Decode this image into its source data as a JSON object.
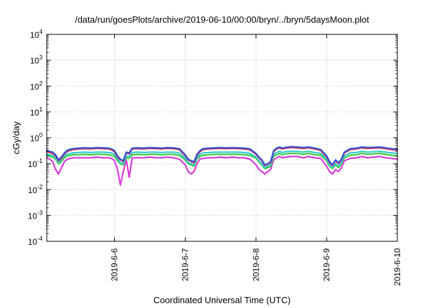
{
  "chart_data": {
    "type": "line",
    "title": "/data/run/goesPlots/archive/2019-06-10/00:00/bryn/../bryn/5daysMoon.plot",
    "xlabel": "Coordinated Universal Time (UTC)",
    "ylabel": "cGy/day",
    "y_scale": "log",
    "ylim": [
      0.0001,
      10000
    ],
    "y_ticks": [
      {
        "value": 0.0001,
        "base": "10",
        "exp": "-4"
      },
      {
        "value": 0.001,
        "base": "10",
        "exp": "-3"
      },
      {
        "value": 0.01,
        "base": "10",
        "exp": "-2"
      },
      {
        "value": 0.1,
        "base": "10",
        "exp": "-1"
      },
      {
        "value": 1,
        "base": "10",
        "exp": "0"
      },
      {
        "value": 10,
        "base": "10",
        "exp": "1"
      },
      {
        "value": 100,
        "base": "10",
        "exp": "2"
      },
      {
        "value": 1000,
        "base": "10",
        "exp": "3"
      },
      {
        "value": 10000,
        "base": "10",
        "exp": "4"
      }
    ],
    "xlim": [
      "2019-06-05 01:00",
      "2019-06-10 00:00"
    ],
    "x_ticks": [
      {
        "value": "2019-06-06",
        "label": "2019-6-6"
      },
      {
        "value": "2019-06-07",
        "label": "2019-6-7"
      },
      {
        "value": "2019-06-08",
        "label": "2019-6-8"
      },
      {
        "value": "2019-06-09",
        "label": "2019-6-9"
      },
      {
        "value": "2019-06-10",
        "label": "2019-6-10"
      }
    ],
    "grid": true,
    "legend": "none",
    "x": [
      "2019-06-05 01:00",
      "2019-06-05 02:00",
      "2019-06-05 03:00",
      "2019-06-05 04:00",
      "2019-06-05 05:00",
      "2019-06-05 06:00",
      "2019-06-05 07:00",
      "2019-06-05 08:00",
      "2019-06-05 09:00",
      "2019-06-05 10:00",
      "2019-06-05 11:00",
      "2019-06-05 12:00",
      "2019-06-05 14:00",
      "2019-06-05 16:00",
      "2019-06-05 18:00",
      "2019-06-05 20:00",
      "2019-06-05 22:00",
      "2019-06-05 23:00",
      "2019-06-06 00:00",
      "2019-06-06 01:00",
      "2019-06-06 02:00",
      "2019-06-06 03:00",
      "2019-06-06 04:00",
      "2019-06-06 05:00",
      "2019-06-06 06:00",
      "2019-06-06 08:00",
      "2019-06-06 10:00",
      "2019-06-06 12:00",
      "2019-06-06 14:00",
      "2019-06-06 16:00",
      "2019-06-06 18:00",
      "2019-06-06 20:00",
      "2019-06-06 22:00",
      "2019-06-07 00:00",
      "2019-06-07 01:00",
      "2019-06-07 02:00",
      "2019-06-07 03:00",
      "2019-06-07 04:00",
      "2019-06-07 05:00",
      "2019-06-07 06:00",
      "2019-06-07 08:00",
      "2019-06-07 10:00",
      "2019-06-07 12:00",
      "2019-06-07 14:00",
      "2019-06-07 16:00",
      "2019-06-07 18:00",
      "2019-06-07 20:00",
      "2019-06-07 22:00",
      "2019-06-08 00:00",
      "2019-06-08 01:00",
      "2019-06-08 02:00",
      "2019-06-08 03:00",
      "2019-06-08 04:00",
      "2019-06-08 05:00",
      "2019-06-08 06:00",
      "2019-06-08 07:00",
      "2019-06-08 08:00",
      "2019-06-08 09:00",
      "2019-06-08 10:00",
      "2019-06-08 12:00",
      "2019-06-08 14:00",
      "2019-06-08 16:00",
      "2019-06-08 18:00",
      "2019-06-08 20:00",
      "2019-06-08 22:00",
      "2019-06-09 00:00",
      "2019-06-09 01:00",
      "2019-06-09 02:00",
      "2019-06-09 03:00",
      "2019-06-09 04:00",
      "2019-06-09 05:00",
      "2019-06-09 06:00",
      "2019-06-09 08:00",
      "2019-06-09 10:00",
      "2019-06-09 12:00",
      "2019-06-09 14:00",
      "2019-06-09 16:00",
      "2019-06-09 18:00",
      "2019-06-09 20:00",
      "2019-06-09 22:00",
      "2019-06-10 00:00"
    ],
    "series": [
      {
        "color": "#2e4fd8",
        "values": [
          0.33,
          0.3,
          0.28,
          0.22,
          0.14,
          0.18,
          0.26,
          0.33,
          0.36,
          0.38,
          0.39,
          0.4,
          0.41,
          0.4,
          0.42,
          0.41,
          0.4,
          0.37,
          0.32,
          0.2,
          0.15,
          0.13,
          0.28,
          0.26,
          0.4,
          0.41,
          0.4,
          0.42,
          0.41,
          0.4,
          0.42,
          0.41,
          0.38,
          0.22,
          0.15,
          0.13,
          0.12,
          0.23,
          0.32,
          0.38,
          0.4,
          0.41,
          0.42,
          0.41,
          0.42,
          0.41,
          0.4,
          0.37,
          0.25,
          0.18,
          0.14,
          0.09,
          0.1,
          0.12,
          0.32,
          0.4,
          0.44,
          0.4,
          0.43,
          0.45,
          0.44,
          0.42,
          0.44,
          0.4,
          0.35,
          0.2,
          0.12,
          0.09,
          0.14,
          0.11,
          0.15,
          0.28,
          0.38,
          0.4,
          0.44,
          0.42,
          0.43,
          0.44,
          0.41,
          0.38,
          0.36
        ]
      },
      {
        "color": "#e8384a",
        "values": [
          0.29,
          0.27,
          0.25,
          0.2,
          0.13,
          0.16,
          0.24,
          0.3,
          0.33,
          0.35,
          0.36,
          0.37,
          0.38,
          0.37,
          0.39,
          0.38,
          0.37,
          0.34,
          0.29,
          0.18,
          0.14,
          0.12,
          0.26,
          0.24,
          0.37,
          0.38,
          0.37,
          0.39,
          0.38,
          0.37,
          0.39,
          0.38,
          0.35,
          0.2,
          0.14,
          0.12,
          0.11,
          0.21,
          0.29,
          0.35,
          0.37,
          0.38,
          0.39,
          0.38,
          0.39,
          0.38,
          0.37,
          0.34,
          0.23,
          0.17,
          0.13,
          0.085,
          0.095,
          0.11,
          0.29,
          0.37,
          0.41,
          0.37,
          0.4,
          0.42,
          0.41,
          0.39,
          0.41,
          0.37,
          0.32,
          0.18,
          0.11,
          0.085,
          0.13,
          0.1,
          0.14,
          0.26,
          0.35,
          0.37,
          0.41,
          0.39,
          0.4,
          0.41,
          0.38,
          0.35,
          0.33
        ]
      },
      {
        "color": "#35c9cf",
        "values": [
          0.24,
          0.22,
          0.21,
          0.17,
          0.11,
          0.14,
          0.2,
          0.24,
          0.25,
          0.26,
          0.27,
          0.27,
          0.28,
          0.27,
          0.28,
          0.28,
          0.27,
          0.26,
          0.23,
          0.15,
          0.11,
          0.1,
          0.2,
          0.19,
          0.27,
          0.28,
          0.27,
          0.28,
          0.28,
          0.27,
          0.28,
          0.28,
          0.26,
          0.16,
          0.11,
          0.1,
          0.09,
          0.17,
          0.23,
          0.26,
          0.27,
          0.28,
          0.28,
          0.28,
          0.28,
          0.28,
          0.27,
          0.25,
          0.18,
          0.13,
          0.1,
          0.07,
          0.08,
          0.09,
          0.23,
          0.27,
          0.3,
          0.27,
          0.29,
          0.3,
          0.3,
          0.28,
          0.3,
          0.27,
          0.25,
          0.15,
          0.09,
          0.07,
          0.1,
          0.08,
          0.11,
          0.2,
          0.26,
          0.27,
          0.3,
          0.28,
          0.29,
          0.3,
          0.28,
          0.26,
          0.25
        ]
      },
      {
        "color": "#3cc93f",
        "values": [
          0.21,
          0.19,
          0.18,
          0.15,
          0.1,
          0.12,
          0.17,
          0.2,
          0.21,
          0.22,
          0.22,
          0.22,
          0.23,
          0.22,
          0.23,
          0.23,
          0.22,
          0.21,
          0.19,
          0.13,
          0.1,
          0.09,
          0.17,
          0.16,
          0.22,
          0.23,
          0.22,
          0.23,
          0.23,
          0.22,
          0.23,
          0.23,
          0.21,
          0.14,
          0.1,
          0.09,
          0.08,
          0.15,
          0.19,
          0.21,
          0.22,
          0.23,
          0.23,
          0.23,
          0.23,
          0.23,
          0.22,
          0.21,
          0.16,
          0.12,
          0.09,
          0.065,
          0.07,
          0.08,
          0.19,
          0.22,
          0.25,
          0.22,
          0.24,
          0.25,
          0.25,
          0.23,
          0.25,
          0.22,
          0.21,
          0.13,
          0.08,
          0.065,
          0.09,
          0.07,
          0.1,
          0.17,
          0.21,
          0.22,
          0.25,
          0.23,
          0.24,
          0.25,
          0.23,
          0.21,
          0.2
        ]
      },
      {
        "color": "#d63bd6",
        "values": [
          0.17,
          0.15,
          0.12,
          0.06,
          0.04,
          0.07,
          0.12,
          0.15,
          0.16,
          0.17,
          0.17,
          0.17,
          0.17,
          0.17,
          0.18,
          0.17,
          0.17,
          0.16,
          0.13,
          0.06,
          0.015,
          0.05,
          0.14,
          0.03,
          0.17,
          0.17,
          0.17,
          0.18,
          0.17,
          0.17,
          0.18,
          0.17,
          0.15,
          0.09,
          0.05,
          0.04,
          0.05,
          0.1,
          0.15,
          0.16,
          0.17,
          0.17,
          0.18,
          0.17,
          0.18,
          0.17,
          0.17,
          0.15,
          0.09,
          0.06,
          0.05,
          0.04,
          0.05,
          0.06,
          0.14,
          0.17,
          0.19,
          0.17,
          0.18,
          0.19,
          0.19,
          0.17,
          0.19,
          0.17,
          0.16,
          0.08,
          0.05,
          0.04,
          0.06,
          0.05,
          0.07,
          0.13,
          0.16,
          0.17,
          0.19,
          0.17,
          0.18,
          0.19,
          0.17,
          0.16,
          0.15
        ]
      }
    ]
  }
}
